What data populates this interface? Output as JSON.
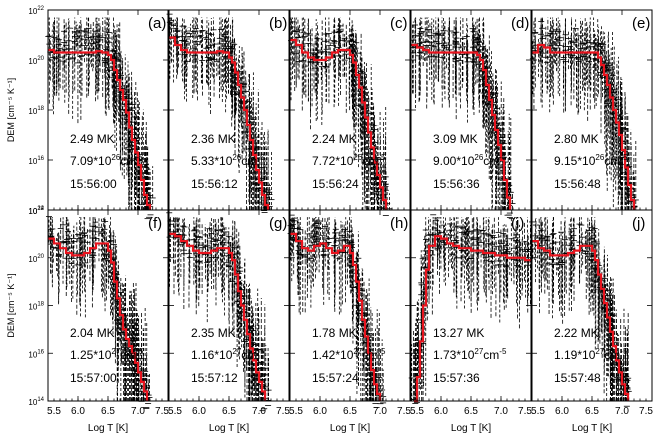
{
  "chart_data": {
    "type": "line",
    "description_axes": {
      "xlabel": "Log T [K]",
      "ylabel": "DEM [cm⁻⁵ K⁻¹]",
      "xlim": [
        5.5,
        7.5
      ],
      "ylim_log10": [
        14,
        22
      ],
      "x_ticks": [
        "5.5",
        "6.0",
        "6.5",
        "7.0",
        "7.5"
      ],
      "y_ticks": [
        {
          "base": "10",
          "exp": "14",
          "value": 14
        },
        {
          "base": "10",
          "exp": "16",
          "value": 16
        },
        {
          "base": "10",
          "exp": "18",
          "value": 18
        },
        {
          "base": "10",
          "exp": "20",
          "value": 20
        },
        {
          "base": "10",
          "exp": "22",
          "value": 22
        }
      ]
    },
    "panels": [
      {
        "id": "(a)",
        "temp": "2.49 MK",
        "em_mant": "7.09*10",
        "em_exp": "26",
        "em_unit": "cm",
        "em_unit_exp": "-5",
        "time": "15:56:00",
        "highlight": false,
        "x": [
          5.5,
          5.6,
          5.7,
          5.8,
          5.9,
          6.0,
          6.1,
          6.2,
          6.3,
          6.4,
          6.5,
          6.55,
          6.6,
          6.65,
          6.7,
          6.75,
          6.8,
          6.85,
          6.9,
          6.95,
          7.0,
          7.05,
          7.1,
          7.15,
          7.2
        ],
        "y": [
          20.4,
          20.3,
          20.3,
          20.3,
          20.3,
          20.3,
          20.3,
          20.3,
          20.35,
          20.3,
          20.2,
          20.0,
          19.6,
          19.2,
          18.8,
          18.4,
          17.9,
          17.3,
          16.8,
          16.3,
          15.8,
          15.2,
          14.6,
          14.2,
          14.0
        ]
      },
      {
        "id": "(b)",
        "temp": "2.36 MK",
        "em_mant": "5.33*10",
        "em_exp": "26",
        "em_unit": "cm",
        "em_unit_exp": "-5",
        "time": "15:56:12",
        "highlight": false,
        "x": [
          5.5,
          5.6,
          5.7,
          5.8,
          5.9,
          6.0,
          6.1,
          6.2,
          6.3,
          6.4,
          6.5,
          6.55,
          6.6,
          6.65,
          6.7,
          6.75,
          6.8,
          6.85,
          6.9,
          6.95,
          7.0,
          7.05,
          7.1,
          7.15
        ],
        "y": [
          20.9,
          20.6,
          20.4,
          20.3,
          20.3,
          20.3,
          20.3,
          20.3,
          20.35,
          20.3,
          20.1,
          19.9,
          19.5,
          19.0,
          18.5,
          18.0,
          17.4,
          16.8,
          16.2,
          15.6,
          15.1,
          14.6,
          14.2,
          14.0
        ]
      },
      {
        "id": "(c)",
        "temp": "2.24 MK",
        "em_mant": "7.72*10",
        "em_exp": "26",
        "em_unit": "cm",
        "em_unit_exp": "-5",
        "time": "15:56:24",
        "highlight": false,
        "x": [
          5.5,
          5.6,
          5.7,
          5.8,
          5.9,
          6.0,
          6.1,
          6.2,
          6.3,
          6.4,
          6.5,
          6.55,
          6.6,
          6.65,
          6.7,
          6.75,
          6.8,
          6.85,
          6.9,
          6.95,
          7.0,
          7.05,
          7.1
        ],
        "y": [
          20.8,
          20.6,
          20.3,
          20.1,
          20.0,
          20.0,
          20.1,
          20.3,
          20.4,
          20.4,
          20.2,
          19.9,
          19.4,
          18.9,
          18.3,
          17.7,
          17.1,
          16.5,
          15.9,
          15.4,
          14.9,
          14.4,
          14.0
        ]
      },
      {
        "id": "(d)",
        "temp": "3.09 MK",
        "em_mant": "9.00*10",
        "em_exp": "26",
        "em_unit": "cm",
        "em_unit_exp": "-5",
        "time": "15:56:36",
        "highlight": false,
        "x": [
          5.5,
          5.6,
          5.7,
          5.8,
          5.9,
          6.0,
          6.1,
          6.2,
          6.3,
          6.4,
          6.5,
          6.6,
          6.65,
          6.7,
          6.75,
          6.8,
          6.85,
          6.9,
          6.95,
          7.0,
          7.05,
          7.1,
          7.15
        ],
        "y": [
          20.6,
          20.5,
          20.4,
          20.3,
          20.3,
          20.3,
          20.3,
          20.3,
          20.3,
          20.3,
          20.3,
          20.2,
          20.0,
          19.6,
          19.0,
          18.4,
          17.8,
          17.2,
          16.6,
          16.0,
          15.2,
          14.5,
          14.0
        ]
      },
      {
        "id": "(e)",
        "temp": "2.80 MK",
        "em_mant": "9.15*10",
        "em_exp": "26",
        "em_unit": "cm",
        "em_unit_exp": "-5",
        "time": "15:56:48",
        "highlight": false,
        "x": [
          5.5,
          5.6,
          5.7,
          5.8,
          5.9,
          6.0,
          6.1,
          6.2,
          6.3,
          6.4,
          6.5,
          6.6,
          6.65,
          6.7,
          6.75,
          6.8,
          6.85,
          6.9,
          6.95,
          7.0,
          7.05,
          7.1,
          7.15,
          7.2
        ],
        "y": [
          20.3,
          20.6,
          20.5,
          20.3,
          20.3,
          20.3,
          20.3,
          20.3,
          20.3,
          20.3,
          20.3,
          20.1,
          19.8,
          19.4,
          19.0,
          18.5,
          18.0,
          17.5,
          17.0,
          16.4,
          15.7,
          15.0,
          14.4,
          14.0
        ]
      },
      {
        "id": "(f)",
        "temp": "2.04 MK",
        "em_mant": "1.25*10",
        "em_exp": "27",
        "em_unit": "cm",
        "em_unit_exp": "-5",
        "time": "15:57:00",
        "highlight": false,
        "x": [
          5.5,
          5.6,
          5.7,
          5.8,
          5.9,
          6.0,
          6.1,
          6.2,
          6.3,
          6.4,
          6.5,
          6.55,
          6.6,
          6.65,
          6.7,
          6.75,
          6.8,
          6.85,
          6.9,
          6.95,
          7.0,
          7.05,
          7.1,
          7.15
        ],
        "y": [
          20.8,
          20.6,
          20.4,
          20.2,
          20.1,
          20.1,
          20.2,
          20.4,
          20.6,
          20.6,
          20.3,
          19.8,
          19.0,
          18.3,
          17.6,
          17.0,
          16.6,
          16.3,
          16.0,
          15.6,
          15.2,
          14.8,
          14.4,
          14.0
        ]
      },
      {
        "id": "(g)",
        "temp": "2.35 MK",
        "em_mant": "1.16*10",
        "em_exp": "27",
        "em_unit": "cm",
        "em_unit_exp": "-5",
        "time": "15:57:12",
        "highlight": false,
        "x": [
          5.5,
          5.6,
          5.7,
          5.8,
          5.9,
          6.0,
          6.1,
          6.2,
          6.3,
          6.4,
          6.5,
          6.55,
          6.6,
          6.65,
          6.7,
          6.75,
          6.8,
          6.85,
          6.9,
          6.95,
          7.0,
          7.05,
          7.1
        ],
        "y": [
          21.0,
          20.9,
          20.7,
          20.5,
          20.3,
          20.2,
          20.2,
          20.3,
          20.4,
          20.4,
          20.2,
          19.9,
          19.3,
          18.6,
          18.0,
          17.4,
          16.8,
          16.2,
          15.7,
          15.2,
          14.8,
          14.4,
          14.0
        ]
      },
      {
        "id": "(h)",
        "temp": "1.78 MK",
        "em_mant": "1.42*10",
        "em_exp": "27",
        "em_unit": "cm",
        "em_unit_exp": "-5",
        "time": "15:57:24",
        "highlight": false,
        "x": [
          5.5,
          5.6,
          5.7,
          5.8,
          5.9,
          6.0,
          6.1,
          6.2,
          6.3,
          6.4,
          6.5,
          6.55,
          6.6,
          6.65,
          6.7,
          6.75,
          6.8,
          6.85,
          6.9,
          6.95,
          7.0
        ],
        "y": [
          21.0,
          20.7,
          20.4,
          20.3,
          20.5,
          20.6,
          20.4,
          20.2,
          20.3,
          20.5,
          20.2,
          19.7,
          19.0,
          18.2,
          17.4,
          16.7,
          16.0,
          15.3,
          14.7,
          14.3,
          14.0
        ]
      },
      {
        "id": "(i)",
        "temp": "13.27 MK",
        "em_mant": "1.73*10",
        "em_exp": "27",
        "em_unit": "cm",
        "em_unit_exp": "-5",
        "time": "15:57:36",
        "highlight": true,
        "x": [
          5.55,
          5.6,
          5.65,
          5.7,
          5.75,
          5.8,
          5.9,
          6.0,
          6.1,
          6.2,
          6.3,
          6.4,
          6.5,
          6.6,
          6.7,
          6.8,
          6.9,
          7.0,
          7.1,
          7.2,
          7.3,
          7.4,
          7.5
        ],
        "y": [
          14.0,
          15.0,
          16.5,
          18.0,
          19.5,
          20.5,
          20.9,
          20.8,
          20.6,
          20.5,
          20.4,
          20.4,
          20.3,
          20.3,
          20.2,
          20.2,
          20.1,
          20.1,
          20.0,
          20.0,
          20.0,
          19.9,
          19.9
        ]
      },
      {
        "id": "(j)",
        "temp": "2.22 MK",
        "em_mant": "1.19*10",
        "em_exp": "27",
        "em_unit": "cm",
        "em_unit_exp": "-5",
        "time": "15:57:48",
        "highlight": false,
        "x": [
          5.5,
          5.6,
          5.7,
          5.8,
          5.9,
          6.0,
          6.1,
          6.2,
          6.3,
          6.4,
          6.5,
          6.55,
          6.6,
          6.65,
          6.7,
          6.75,
          6.8,
          6.85,
          6.9,
          6.95,
          7.0,
          7.05,
          7.1
        ],
        "y": [
          20.7,
          20.4,
          20.3,
          20.1,
          20.1,
          20.1,
          20.2,
          20.3,
          20.5,
          20.5,
          20.3,
          19.9,
          19.3,
          18.7,
          18.1,
          17.5,
          16.9,
          16.3,
          15.7,
          15.2,
          14.7,
          14.3,
          14.0
        ]
      }
    ]
  },
  "colors": {
    "line": "#e8141e",
    "highlight_text": "#e0106e",
    "axis": "#000000",
    "errorbars": "#000000"
  }
}
